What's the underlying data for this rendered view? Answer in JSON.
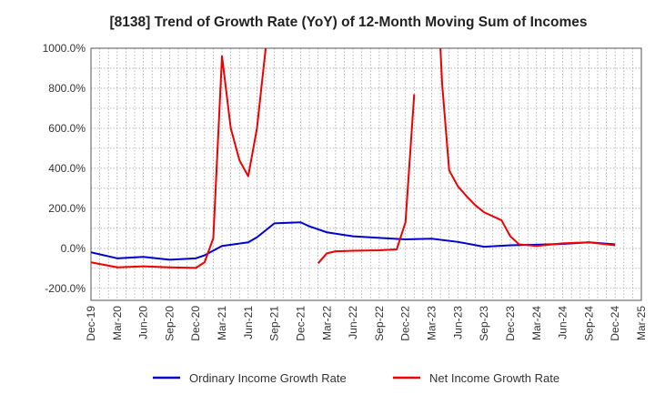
{
  "chart_data": {
    "type": "line",
    "title": "[8138]  Trend of Growth Rate (YoY) of 12-Month Moving Sum of Incomes",
    "xlabel": "",
    "ylabel": "",
    "ylim": [
      -260,
      1000
    ],
    "y_ticks": [
      1000,
      800,
      600,
      400,
      200,
      0,
      -200
    ],
    "y_tick_labels": [
      "1000.0%",
      "800.0%",
      "600.0%",
      "400.0%",
      "200.0%",
      "0.0%",
      "-200.0%"
    ],
    "x_tick_labels": [
      "Dec-19",
      "Mar-20",
      "Jun-20",
      "Sep-20",
      "Dec-20",
      "Mar-21",
      "Jun-21",
      "Sep-21",
      "Dec-21",
      "Mar-22",
      "Jun-22",
      "Sep-22",
      "Dec-22",
      "Mar-23",
      "Jun-23",
      "Sep-23",
      "Dec-23",
      "Mar-24",
      "Jun-24",
      "Sep-24",
      "Dec-24",
      "Mar-25"
    ],
    "x_range_months": [
      0,
      63
    ],
    "grid": true,
    "legend_position": "bottom",
    "series": [
      {
        "name": "Ordinary Income Growth Rate",
        "color": "#0000cc",
        "points": [
          [
            0,
            -20
          ],
          [
            3,
            -50
          ],
          [
            6,
            -43
          ],
          [
            9,
            -57
          ],
          [
            12,
            -50
          ],
          [
            13,
            -35
          ],
          [
            15,
            12
          ],
          [
            18,
            30
          ],
          [
            19,
            55
          ],
          [
            21,
            125
          ],
          [
            24,
            130
          ],
          [
            25,
            110
          ],
          [
            27,
            80
          ],
          [
            30,
            60
          ],
          [
            33,
            52
          ],
          [
            36,
            45
          ],
          [
            39,
            48
          ],
          [
            42,
            32
          ],
          [
            45,
            8
          ],
          [
            48,
            15
          ],
          [
            51,
            18
          ],
          [
            54,
            22
          ],
          [
            57,
            30
          ],
          [
            60,
            20
          ]
        ]
      },
      {
        "name": "Net Income Growth Rate",
        "color": "#ee0000",
        "segments": [
          [
            [
              0,
              -70
            ],
            [
              3,
              -95
            ],
            [
              6,
              -90
            ],
            [
              9,
              -95
            ],
            [
              12,
              -98
            ],
            [
              13,
              -70
            ],
            [
              14,
              50
            ],
            [
              15,
              960
            ],
            [
              16,
              600
            ],
            [
              17,
              440
            ],
            [
              18,
              360
            ],
            [
              19,
              600
            ],
            [
              20,
              1000
            ]
          ],
          [
            [
              26,
              -75
            ],
            [
              27,
              -25
            ],
            [
              28,
              -15
            ],
            [
              30,
              -12
            ],
            [
              33,
              -10
            ],
            [
              35,
              -5
            ],
            [
              36,
              130
            ],
            [
              37,
              770
            ]
          ],
          [
            [
              40,
              1000
            ],
            [
              40.2,
              820
            ],
            [
              41,
              390
            ],
            [
              42,
              310
            ],
            [
              43,
              260
            ],
            [
              44,
              215
            ],
            [
              45,
              180
            ],
            [
              47,
              140
            ],
            [
              48,
              60
            ],
            [
              49,
              20
            ],
            [
              51,
              12
            ],
            [
              54,
              25
            ],
            [
              57,
              30
            ],
            [
              60,
              15
            ]
          ]
        ]
      }
    ]
  }
}
